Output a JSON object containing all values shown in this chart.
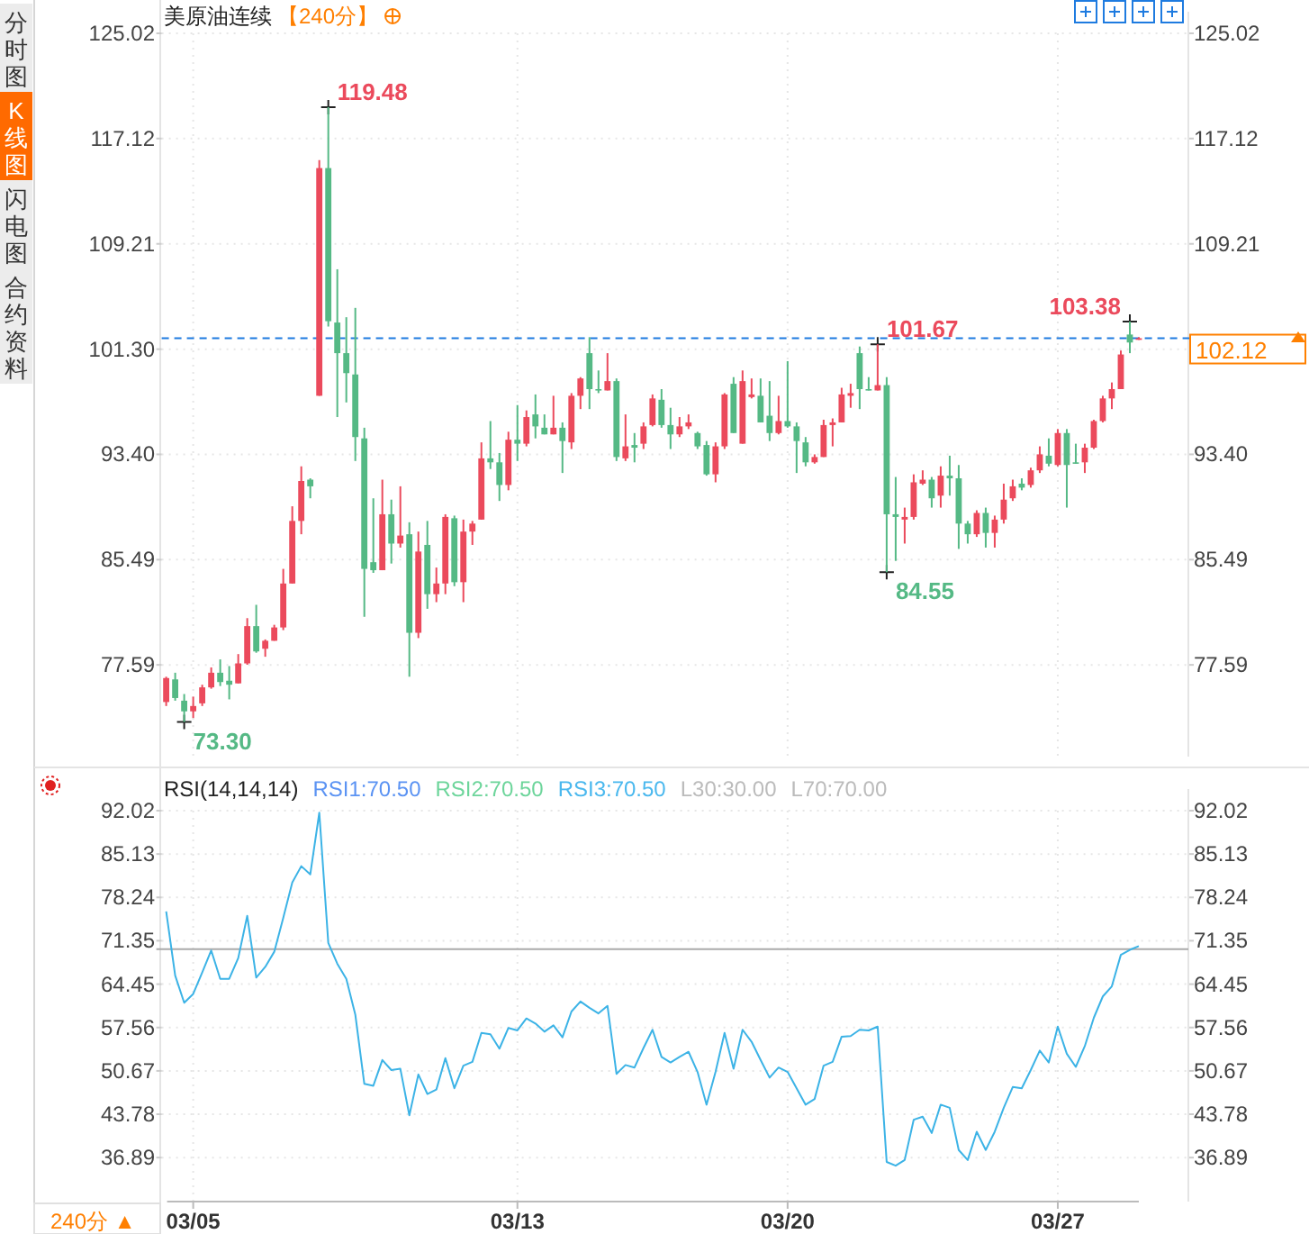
{
  "chart_data": [
    {
      "type": "candlestick",
      "title": "美原油连续",
      "subtitle": "【240分】",
      "categories": [
        null,
        null,
        null,
        null,
        null,
        null,
        null,
        null,
        null,
        null,
        null,
        null,
        null,
        null,
        null,
        null,
        null,
        null,
        null,
        null,
        null,
        null,
        null,
        null,
        null,
        null,
        null,
        null,
        null,
        null,
        null,
        null,
        null,
        null,
        null,
        null,
        null,
        null,
        null,
        null,
        null,
        null,
        null,
        null,
        null,
        null,
        null,
        null,
        null,
        null,
        null,
        null,
        null,
        null,
        null,
        null,
        null,
        null,
        null,
        null,
        null,
        null,
        null,
        null,
        null,
        null,
        null,
        null,
        null,
        null,
        null,
        null,
        null,
        null,
        null,
        null,
        null,
        null,
        null,
        null,
        null,
        null,
        null,
        null,
        null,
        null,
        null,
        null,
        null,
        null,
        null,
        null,
        null,
        null,
        null,
        null,
        null,
        null,
        null,
        null,
        null,
        null,
        null,
        null,
        null,
        null,
        null,
        null,
        null
      ],
      "ohlc": [
        [
          74.8,
          76.7,
          74.5,
          76.6
        ],
        [
          76.5,
          77.0,
          74.9,
          75.1
        ],
        [
          74.9,
          75.4,
          73.3,
          74.1
        ],
        [
          74.1,
          75.2,
          73.6,
          74.5
        ],
        [
          74.7,
          76.1,
          74.5,
          75.9
        ],
        [
          75.9,
          77.4,
          75.8,
          77.0
        ],
        [
          77.0,
          78.0,
          76.0,
          76.3
        ],
        [
          76.4,
          77.5,
          75.0,
          76.1
        ],
        [
          76.2,
          78.4,
          76.2,
          77.7
        ],
        [
          77.7,
          81.1,
          77.6,
          80.5
        ],
        [
          80.5,
          82.1,
          78.5,
          78.6
        ],
        [
          78.8,
          79.5,
          78.2,
          79.4
        ],
        [
          79.4,
          80.6,
          79.4,
          80.4
        ],
        [
          80.4,
          84.8,
          80.2,
          83.7
        ],
        [
          83.7,
          89.5,
          83.7,
          88.4
        ],
        [
          88.4,
          92.5,
          87.4,
          91.4
        ],
        [
          91.5,
          91.6,
          90.1,
          91.0
        ],
        [
          97.8,
          115.5,
          97.8,
          114.9
        ],
        [
          114.9,
          119.48,
          103.0,
          103.4
        ],
        [
          103.3,
          107.3,
          96.2,
          101.0
        ],
        [
          101.0,
          103.7,
          97.3,
          99.5
        ],
        [
          99.4,
          104.4,
          92.9,
          94.7
        ],
        [
          94.6,
          95.4,
          81.2,
          84.8
        ],
        [
          85.3,
          90.1,
          84.5,
          84.7
        ],
        [
          84.7,
          91.5,
          84.7,
          88.9
        ],
        [
          88.9,
          90.0,
          85.2,
          86.7
        ],
        [
          86.7,
          91.0,
          86.4,
          87.3
        ],
        [
          87.4,
          88.3,
          76.7,
          80.0
        ],
        [
          80.0,
          87.6,
          79.6,
          86.1
        ],
        [
          86.6,
          88.4,
          81.8,
          82.9
        ],
        [
          82.9,
          84.9,
          82.3,
          83.7
        ],
        [
          83.7,
          88.9,
          82.9,
          88.7
        ],
        [
          88.6,
          88.8,
          83.5,
          83.8
        ],
        [
          83.8,
          88.5,
          82.3,
          87.6
        ],
        [
          87.6,
          88.4,
          86.6,
          88.2
        ],
        [
          88.5,
          94.3,
          88.5,
          93.1
        ],
        [
          93.1,
          95.9,
          92.3,
          92.8
        ],
        [
          92.8,
          93.5,
          89.9,
          91.1
        ],
        [
          91.1,
          95.1,
          90.7,
          94.5
        ],
        [
          94.5,
          97.1,
          92.9,
          94.2
        ],
        [
          94.2,
          96.7,
          94.0,
          96.2
        ],
        [
          96.4,
          97.9,
          94.6,
          95.5
        ],
        [
          95.4,
          96.4,
          94.9,
          94.9
        ],
        [
          94.9,
          97.8,
          94.9,
          95.4
        ],
        [
          95.4,
          95.8,
          92.0,
          94.4
        ],
        [
          94.3,
          98.0,
          93.8,
          97.8
        ],
        [
          97.8,
          99.2,
          96.8,
          99.1
        ],
        [
          101.0,
          102.2,
          96.8,
          98.3
        ],
        [
          98.3,
          99.7,
          98.0,
          98.2
        ],
        [
          98.2,
          101.0,
          98.2,
          98.9
        ],
        [
          98.9,
          99.1,
          92.9,
          93.2
        ],
        [
          93.1,
          96.4,
          92.9,
          94.0
        ],
        [
          94.1,
          95.0,
          92.8,
          93.9
        ],
        [
          94.2,
          95.8,
          93.8,
          95.5
        ],
        [
          95.6,
          97.9,
          95.5,
          97.6
        ],
        [
          97.5,
          98.3,
          95.4,
          95.6
        ],
        [
          95.6,
          96.9,
          93.8,
          94.9
        ],
        [
          94.9,
          96.2,
          94.7,
          95.5
        ],
        [
          95.5,
          96.4,
          95.3,
          95.8
        ],
        [
          95.0,
          95.1,
          93.8,
          94.0
        ],
        [
          94.1,
          94.4,
          91.8,
          91.9
        ],
        [
          91.9,
          94.3,
          91.3,
          94.0
        ],
        [
          94.0,
          98.0,
          93.8,
          97.9
        ],
        [
          98.7,
          99.2,
          95.0,
          95.0
        ],
        [
          94.2,
          99.7,
          94.2,
          98.9
        ],
        [
          97.7,
          99.1,
          97.6,
          97.9
        ],
        [
          97.8,
          99.1,
          95.8,
          95.8
        ],
        [
          96.3,
          98.9,
          94.4,
          95.0
        ],
        [
          95.0,
          97.8,
          94.9,
          95.9
        ],
        [
          95.9,
          100.4,
          95.4,
          95.5
        ],
        [
          95.5,
          95.8,
          92.0,
          94.4
        ],
        [
          94.3,
          94.7,
          92.5,
          92.8
        ],
        [
          92.8,
          93.4,
          92.7,
          93.2
        ],
        [
          93.2,
          96.0,
          93.2,
          95.6
        ],
        [
          95.6,
          96.1,
          94.0,
          95.8
        ],
        [
          95.8,
          98.4,
          95.8,
          97.9
        ],
        [
          97.8,
          98.7,
          96.9,
          98.0
        ],
        [
          101.0,
          101.5,
          96.8,
          98.3
        ],
        [
          98.3,
          99.2,
          98.2,
          98.2
        ],
        [
          98.2,
          101.67,
          98.2,
          98.6
        ],
        [
          98.6,
          99.2,
          84.55,
          88.9
        ],
        [
          88.9,
          91.7,
          85.4,
          88.7
        ],
        [
          88.5,
          89.4,
          86.7,
          88.7
        ],
        [
          88.7,
          91.9,
          88.5,
          91.3
        ],
        [
          91.2,
          92.2,
          91.1,
          91.5
        ],
        [
          91.5,
          91.7,
          89.4,
          90.1
        ],
        [
          90.3,
          92.5,
          89.4,
          91.8
        ],
        [
          91.8,
          93.3,
          90.3,
          91.6
        ],
        [
          91.6,
          92.6,
          86.3,
          88.2
        ],
        [
          88.2,
          88.4,
          86.7,
          87.4
        ],
        [
          87.4,
          89.2,
          87.2,
          89.0
        ],
        [
          89.0,
          89.4,
          86.4,
          87.5
        ],
        [
          87.5,
          88.8,
          86.4,
          88.5
        ],
        [
          88.5,
          91.2,
          88.2,
          90.0
        ],
        [
          90.1,
          91.5,
          89.9,
          91.0
        ],
        [
          91.2,
          91.6,
          90.7,
          90.9
        ],
        [
          91.1,
          92.4,
          90.9,
          92.2
        ],
        [
          92.2,
          94.0,
          92.0,
          93.4
        ],
        [
          93.3,
          94.6,
          92.5,
          92.7
        ],
        [
          92.6,
          95.3,
          92.5,
          95.0
        ],
        [
          95.0,
          95.3,
          89.4,
          92.6
        ],
        [
          92.8,
          94.2,
          92.7,
          92.7
        ],
        [
          92.8,
          94.2,
          92.0,
          93.9
        ],
        [
          93.9,
          96.0,
          93.8,
          95.9
        ],
        [
          95.9,
          97.8,
          95.8,
          97.6
        ],
        [
          97.6,
          98.8,
          96.8,
          98.3
        ],
        [
          98.3,
          101.2,
          98.3,
          100.9
        ],
        [
          102.4,
          103.38,
          101.0,
          101.8
        ],
        [
          102.0,
          102.2,
          102.0,
          102.12
        ]
      ],
      "ylim": [
        70.7,
        125.02
      ],
      "yticks": [
        125.02,
        117.12,
        109.21,
        {
          "value": 101.3,
          "label": "101.30"
        },
        {
          "value": 93.4,
          "label": "93.40"
        },
        85.49,
        77.59
      ],
      "y2lim": [
        70.7,
        125.02
      ],
      "y2ticks": [
        125.02,
        117.12,
        109.21,
        {
          "value": 93.4,
          "label": "93.40"
        },
        85.49,
        77.59
      ],
      "tick_labels": "y",
      "grid": true,
      "ref_lines": [
        {
          "axis": "y2",
          "value": 102.12,
          "label": "102.12",
          "color": "#1e7be0",
          "line_style": "dashed"
        }
      ],
      "annotations": [
        "119.48",
        "73.30",
        "101.67",
        "84.55",
        "103.38",
        "分时图",
        "K线图",
        "闪电图",
        "合约资料",
        "240分 ▲"
      ]
    },
    {
      "type": "line",
      "title": "RSI(14,14,14)",
      "categories": [
        null,
        null,
        null,
        "03/05",
        null,
        null,
        null,
        null,
        null,
        null,
        null,
        null,
        null,
        null,
        null,
        null,
        null,
        null,
        null,
        null,
        null,
        null,
        null,
        null,
        null,
        null,
        null,
        null,
        null,
        null,
        null,
        null,
        null,
        null,
        null,
        null,
        null,
        null,
        null,
        "03/13",
        null,
        null,
        null,
        null,
        null,
        null,
        null,
        null,
        null,
        null,
        null,
        null,
        null,
        null,
        null,
        null,
        null,
        null,
        null,
        null,
        null,
        null,
        null,
        null,
        null,
        null,
        null,
        null,
        null,
        "03/20",
        null,
        null,
        null,
        null,
        null,
        null,
        null,
        null,
        null,
        null,
        null,
        null,
        null,
        null,
        null,
        null,
        null,
        null,
        null,
        null,
        null,
        null,
        null,
        null,
        null,
        null,
        null,
        null,
        null,
        "03/27",
        null,
        null,
        null,
        null,
        null,
        null,
        null,
        null,
        null
      ],
      "series": [
        {
          "color": "#3cb3e6",
          "values": [
            76.0,
            65.8,
            61.5,
            62.9,
            66.3,
            69.8,
            65.3,
            65.3,
            68.6,
            75.3,
            65.5,
            67.2,
            69.6,
            75.0,
            80.6,
            83.2,
            81.9,
            91.7,
            71.0,
            67.7,
            65.3,
            59.6,
            48.6,
            48.3,
            52.4,
            50.8,
            51.0,
            43.6,
            50.1,
            47.0,
            47.7,
            52.7,
            47.9,
            51.5,
            52.1,
            56.7,
            56.5,
            54.2,
            57.5,
            57.1,
            59.0,
            58.2,
            56.9,
            57.9,
            56.0,
            60.1,
            61.7,
            60.7,
            59.8,
            61.0,
            50.2,
            51.6,
            51.2,
            54.3,
            57.2,
            52.9,
            52.0,
            52.9,
            53.7,
            50.5,
            45.3,
            50.5,
            56.7,
            51.0,
            57.2,
            55.3,
            52.4,
            49.6,
            51.2,
            50.5,
            47.9,
            45.3,
            46.2,
            51.5,
            52.1,
            56.1,
            56.2,
            57.2,
            57.1,
            57.7,
            36.2,
            35.6,
            36.5,
            42.9,
            43.4,
            40.8,
            45.3,
            44.8,
            38.1,
            36.5,
            41.0,
            38.1,
            41.0,
            44.8,
            48.1,
            47.9,
            50.8,
            53.9,
            52.0,
            57.7,
            53.4,
            51.3,
            54.6,
            59.1,
            62.5,
            64.1,
            69.1,
            69.9,
            70.5
          ]
        }
      ],
      "ylim": [
        29.9,
        92.02
      ],
      "yticks": [
        92.02,
        85.13,
        78.24,
        71.35,
        64.45,
        57.56,
        50.67,
        43.78,
        36.89
      ],
      "y2lim": [
        29.9,
        92.02
      ],
      "y2ticks": [
        92.02,
        85.13,
        78.24,
        71.35,
        64.45,
        57.56,
        50.67,
        43.78,
        36.89
      ],
      "grid": true,
      "ref_lines": [
        {
          "axis": "y",
          "value": 70,
          "color": "#aaaaaa",
          "line_style": "solid"
        }
      ],
      "annotations": [
        "RSI1:70.50",
        "RSI2:70.50",
        "RSI3:70.50",
        "L30:30.00",
        "L70:70.00"
      ]
    }
  ]
}
